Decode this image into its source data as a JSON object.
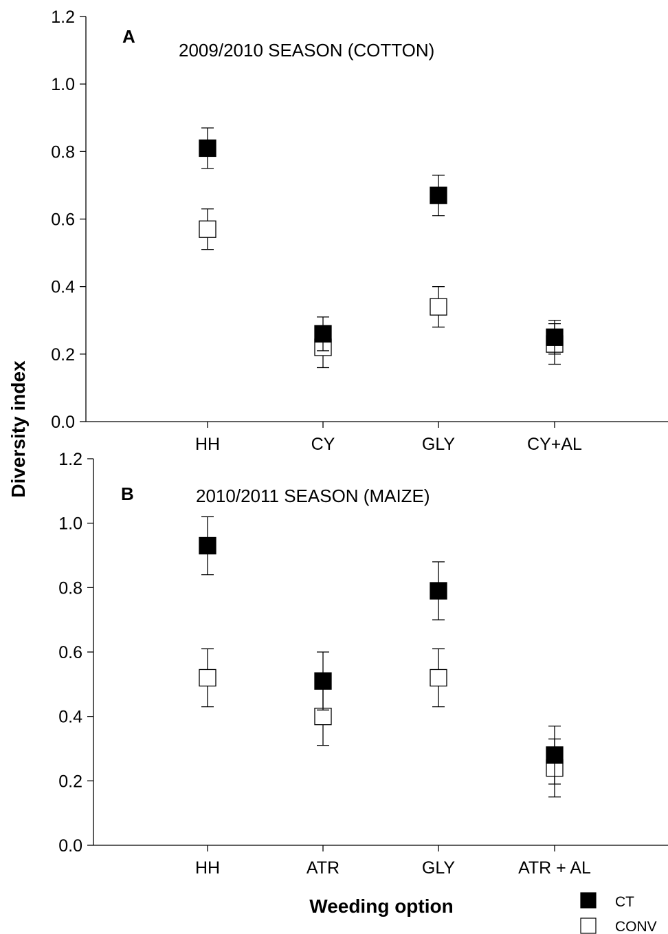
{
  "ylabel": "Diversity index",
  "xlabel": "Weeding option",
  "legend": [
    {
      "label": "CT",
      "fill": "#000000"
    },
    {
      "label": "CONV",
      "fill": "#ffffff"
    }
  ],
  "chart_data": [
    {
      "type": "scatter",
      "panel": "A",
      "title": "2009/2010 SEASON (COTTON)",
      "categories": [
        "HH",
        "CY",
        "GLY",
        "CY+AL"
      ],
      "ylim": [
        0,
        1.2
      ],
      "yticks": [
        "0.0",
        "0.2",
        "0.4",
        "0.6",
        "0.8",
        "1.0",
        "1.2"
      ],
      "series": [
        {
          "name": "CT",
          "values": [
            0.81,
            0.26,
            0.67,
            0.25
          ],
          "errors": [
            0.06,
            0.05,
            0.06,
            0.05
          ]
        },
        {
          "name": "CONV",
          "values": [
            0.57,
            0.22,
            0.34,
            0.23
          ],
          "errors": [
            0.06,
            0.06,
            0.06,
            0.06
          ]
        }
      ]
    },
    {
      "type": "scatter",
      "panel": "B",
      "title": "2010/2011 SEASON (MAIZE)",
      "categories": [
        "HH",
        "ATR",
        "GLY",
        "ATR + AL"
      ],
      "ylim": [
        0,
        1.2
      ],
      "yticks": [
        "0.0",
        "0.2",
        "0.4",
        "0.6",
        "0.8",
        "1.0",
        "1.2"
      ],
      "series": [
        {
          "name": "CT",
          "values": [
            0.93,
            0.51,
            0.79,
            0.28
          ],
          "errors": [
            0.09,
            0.09,
            0.09,
            0.09
          ]
        },
        {
          "name": "CONV",
          "values": [
            0.52,
            0.4,
            0.52,
            0.24
          ],
          "errors": [
            0.09,
            0.09,
            0.09,
            0.09
          ]
        }
      ]
    }
  ]
}
